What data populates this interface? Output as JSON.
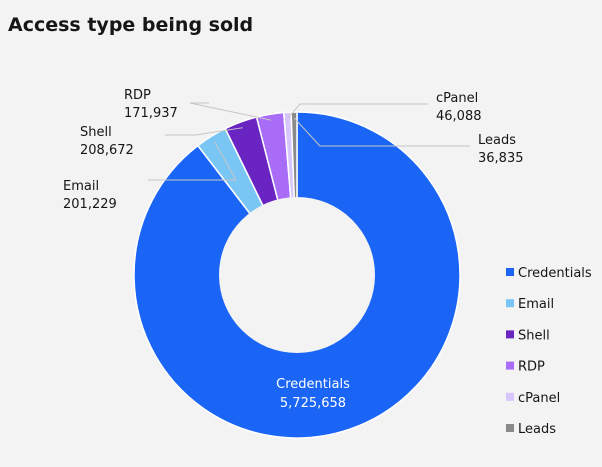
{
  "chart_data": {
    "type": "pie",
    "title": "Access type being sold",
    "categories": [
      "Credentials",
      "Email",
      "Shell",
      "RDP",
      "cPanel",
      "Leads"
    ],
    "values": [
      5725658,
      201229,
      208672,
      171937,
      46088,
      36835
    ],
    "display_values": [
      "5,725,658",
      "201,229",
      "208,672",
      "171,937",
      "46,088",
      "36,835"
    ],
    "colors": [
      "#1a65f5",
      "#79c6f5",
      "#6a24c2",
      "#a86cf7",
      "#d7c6fc",
      "#8a8a8a"
    ],
    "legend_position": "right",
    "donut": true
  }
}
